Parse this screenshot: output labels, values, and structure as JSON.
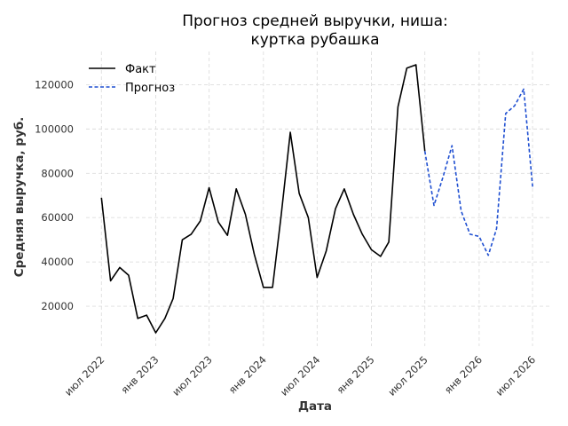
{
  "chart_data": {
    "type": "line",
    "title_lines": [
      "Прогноз средней выручки, ниша:",
      "куртка рубашка"
    ],
    "xlabel": "Дата",
    "ylabel": "Средняя выручка, руб.",
    "x_ticks": [
      {
        "date": "2022-07-01",
        "label": "июл 2022"
      },
      {
        "date": "2023-01-01",
        "label": "янв 2023"
      },
      {
        "date": "2023-07-01",
        "label": "июл 2023"
      },
      {
        "date": "2024-01-01",
        "label": "янв 2024"
      },
      {
        "date": "2024-07-01",
        "label": "июл 2024"
      },
      {
        "date": "2025-01-01",
        "label": "янв 2025"
      },
      {
        "date": "2025-07-01",
        "label": "июл 2025"
      },
      {
        "date": "2026-01-01",
        "label": "янв 2026"
      },
      {
        "date": "2026-07-01",
        "label": "июл 2026"
      }
    ],
    "y_ticks": [
      20000,
      40000,
      60000,
      80000,
      100000,
      120000
    ],
    "xlim": [
      "2022-05-10",
      "2026-09-05"
    ],
    "ylim": [
      2000,
      135000
    ],
    "grid": true,
    "legend_position": "top-left",
    "series": [
      {
        "name": "Факт",
        "style": "solid",
        "color": "#000000",
        "points": [
          [
            "2022-07-01",
            69000
          ],
          [
            "2022-08-01",
            31500
          ],
          [
            "2022-09-01",
            37500
          ],
          [
            "2022-10-01",
            34000
          ],
          [
            "2022-11-01",
            14500
          ],
          [
            "2022-12-01",
            16000
          ],
          [
            "2023-01-01",
            8000
          ],
          [
            "2023-02-01",
            14500
          ],
          [
            "2023-03-01",
            23500
          ],
          [
            "2023-04-01",
            50000
          ],
          [
            "2023-05-01",
            52500
          ],
          [
            "2023-06-01",
            58500
          ],
          [
            "2023-07-01",
            73500
          ],
          [
            "2023-08-01",
            58000
          ],
          [
            "2023-09-01",
            52000
          ],
          [
            "2023-10-01",
            73000
          ],
          [
            "2023-11-01",
            61500
          ],
          [
            "2023-12-01",
            43500
          ],
          [
            "2024-01-01",
            28500
          ],
          [
            "2024-02-01",
            28500
          ],
          [
            "2024-03-01",
            61000
          ],
          [
            "2024-04-01",
            98500
          ],
          [
            "2024-05-01",
            71000
          ],
          [
            "2024-06-01",
            60000
          ],
          [
            "2024-07-01",
            33000
          ],
          [
            "2024-08-01",
            45000
          ],
          [
            "2024-09-01",
            64000
          ],
          [
            "2024-10-01",
            73000
          ],
          [
            "2024-11-01",
            61500
          ],
          [
            "2024-12-01",
            52500
          ],
          [
            "2025-01-01",
            45500
          ],
          [
            "2025-02-01",
            42500
          ],
          [
            "2025-03-01",
            49000
          ],
          [
            "2025-04-01",
            110000
          ],
          [
            "2025-05-01",
            127500
          ],
          [
            "2025-06-01",
            129000
          ],
          [
            "2025-07-01",
            90000
          ]
        ]
      },
      {
        "name": "Прогноз",
        "style": "dashed",
        "color": "#1f4fd1",
        "points": [
          [
            "2025-07-01",
            90000
          ],
          [
            "2025-08-01",
            65500
          ],
          [
            "2025-09-01",
            78500
          ],
          [
            "2025-10-01",
            92500
          ],
          [
            "2025-11-01",
            63000
          ],
          [
            "2025-12-01",
            52500
          ],
          [
            "2026-01-01",
            51500
          ],
          [
            "2026-02-01",
            43000
          ],
          [
            "2026-03-01",
            55000
          ],
          [
            "2026-04-01",
            107000
          ],
          [
            "2026-05-01",
            110500
          ],
          [
            "2026-06-01",
            118000
          ],
          [
            "2026-07-01",
            74000
          ]
        ]
      }
    ]
  }
}
